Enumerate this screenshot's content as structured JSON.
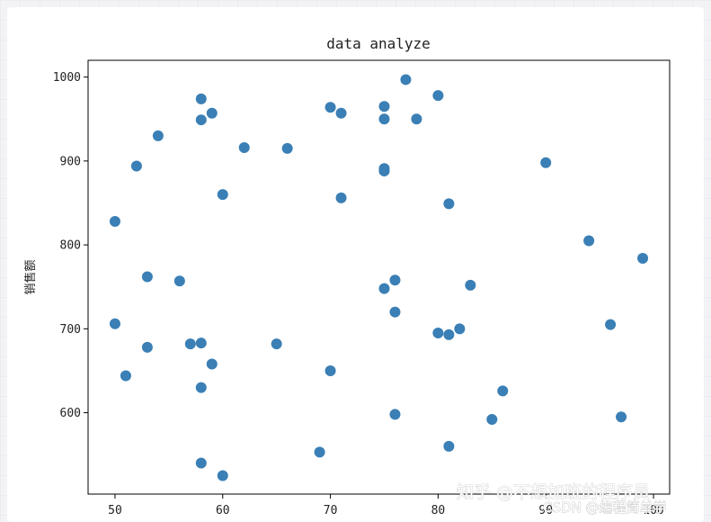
{
  "chart_data": {
    "type": "scatter",
    "title": "data analyze",
    "xlabel": "",
    "ylabel": "销售额",
    "xlim": [
      47.5,
      101.5
    ],
    "ylim": [
      503,
      1020
    ],
    "xticks": [
      50,
      60,
      70,
      80,
      90,
      100
    ],
    "yticks": [
      600,
      700,
      800,
      900,
      1000
    ],
    "grid": false,
    "marker_color": "#3a7fb5",
    "points": [
      [
        50,
        828
      ],
      [
        50,
        706
      ],
      [
        51,
        644
      ],
      [
        52,
        894
      ],
      [
        53,
        762
      ],
      [
        53,
        678
      ],
      [
        54,
        930
      ],
      [
        56,
        757
      ],
      [
        57,
        682
      ],
      [
        58,
        974
      ],
      [
        58,
        949
      ],
      [
        58,
        683
      ],
      [
        58,
        630
      ],
      [
        58,
        540
      ],
      [
        59,
        957
      ],
      [
        59,
        658
      ],
      [
        60,
        860
      ],
      [
        60,
        525
      ],
      [
        62,
        916
      ],
      [
        65,
        682
      ],
      [
        66,
        915
      ],
      [
        69,
        553
      ],
      [
        70,
        964
      ],
      [
        70,
        650
      ],
      [
        71,
        957
      ],
      [
        71,
        856
      ],
      [
        75,
        965
      ],
      [
        75,
        950
      ],
      [
        75,
        891
      ],
      [
        75,
        888
      ],
      [
        75,
        748
      ],
      [
        76,
        758
      ],
      [
        76,
        720
      ],
      [
        76,
        598
      ],
      [
        77,
        997
      ],
      [
        78,
        950
      ],
      [
        80,
        978
      ],
      [
        80,
        695
      ],
      [
        81,
        849
      ],
      [
        81,
        693
      ],
      [
        81,
        560
      ],
      [
        82,
        700
      ],
      [
        83,
        752
      ],
      [
        85,
        592
      ],
      [
        86,
        626
      ],
      [
        90,
        898
      ],
      [
        94,
        805
      ],
      [
        96,
        705
      ],
      [
        97,
        595
      ],
      [
        99,
        784
      ]
    ]
  },
  "watermark": {
    "line1": "知乎 @不想加班的程序员",
    "line2": "CSDN @编程简单学"
  }
}
